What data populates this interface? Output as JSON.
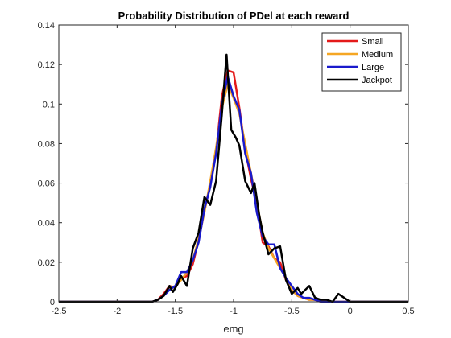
{
  "chart_data": {
    "type": "line",
    "title": "Probability Distribution of PDel at each reward",
    "xlabel": "emg",
    "ylabel": "",
    "xlim": [
      -2.5,
      0.5
    ],
    "ylim": [
      0,
      0.14
    ],
    "xticks": [
      -2.5,
      -2,
      -1.5,
      -1,
      -0.5,
      0,
      0.5
    ],
    "xtick_labels": [
      "-2.5",
      "-2",
      "-1.5",
      "-1",
      "-0.5",
      "0",
      "0.5"
    ],
    "yticks": [
      0,
      0.02,
      0.04,
      0.06,
      0.08,
      0.1,
      0.12,
      0.14
    ],
    "ytick_labels": [
      "0",
      "0.02",
      "0.04",
      "0.06",
      "0.08",
      "0.1",
      "0.12",
      "0.14"
    ],
    "grid": false,
    "legend_position": "top-right",
    "series": [
      {
        "name": "Small",
        "color": "#e41a1a",
        "x": [
          -2.5,
          -1.8,
          -1.7,
          -1.65,
          -1.6,
          -1.55,
          -1.5,
          -1.45,
          -1.4,
          -1.35,
          -1.3,
          -1.25,
          -1.2,
          -1.15,
          -1.1,
          -1.05,
          -1.0,
          -0.95,
          -0.9,
          -0.85,
          -0.8,
          -0.75,
          -0.7,
          -0.65,
          -0.6,
          -0.55,
          -0.5,
          -0.45,
          -0.4,
          -0.35,
          -0.3,
          -0.25,
          -0.2,
          -0.1,
          0.5
        ],
        "y": [
          0,
          0,
          0,
          0.001,
          0.004,
          0.008,
          0.007,
          0.012,
          0.013,
          0.019,
          0.031,
          0.046,
          0.059,
          0.076,
          0.104,
          0.117,
          0.116,
          0.098,
          0.077,
          0.062,
          0.05,
          0.03,
          0.028,
          0.022,
          0.02,
          0.011,
          0.006,
          0.003,
          0.002,
          0.001,
          0.001,
          0,
          0,
          0,
          0
        ]
      },
      {
        "name": "Medium",
        "color": "#f5a623",
        "x": [
          -2.5,
          -1.8,
          -1.7,
          -1.65,
          -1.6,
          -1.55,
          -1.5,
          -1.45,
          -1.4,
          -1.35,
          -1.3,
          -1.25,
          -1.2,
          -1.15,
          -1.1,
          -1.05,
          -1.0,
          -0.95,
          -0.9,
          -0.85,
          -0.8,
          -0.75,
          -0.7,
          -0.65,
          -0.6,
          -0.55,
          -0.5,
          -0.45,
          -0.4,
          -0.35,
          -0.3,
          -0.25,
          -0.2,
          -0.1,
          0.5
        ],
        "y": [
          0,
          0,
          0,
          0.001,
          0.003,
          0.007,
          0.008,
          0.011,
          0.015,
          0.021,
          0.032,
          0.045,
          0.061,
          0.078,
          0.098,
          0.11,
          0.103,
          0.095,
          0.08,
          0.065,
          0.05,
          0.035,
          0.027,
          0.022,
          0.017,
          0.012,
          0.006,
          0.003,
          0.002,
          0.001,
          0.001,
          0,
          0,
          0,
          0
        ]
      },
      {
        "name": "Large",
        "color": "#1a1acc",
        "x": [
          -2.5,
          -1.8,
          -1.7,
          -1.65,
          -1.6,
          -1.55,
          -1.5,
          -1.45,
          -1.4,
          -1.35,
          -1.3,
          -1.25,
          -1.2,
          -1.15,
          -1.1,
          -1.05,
          -1.0,
          -0.95,
          -0.9,
          -0.85,
          -0.8,
          -0.75,
          -0.7,
          -0.65,
          -0.6,
          -0.55,
          -0.5,
          -0.45,
          -0.4,
          -0.35,
          -0.3,
          -0.25,
          -0.2,
          -0.1,
          0.5
        ],
        "y": [
          0,
          0,
          0,
          0.001,
          0.003,
          0.006,
          0.008,
          0.015,
          0.015,
          0.021,
          0.03,
          0.047,
          0.058,
          0.075,
          0.1,
          0.114,
          0.104,
          0.097,
          0.075,
          0.065,
          0.045,
          0.033,
          0.029,
          0.029,
          0.017,
          0.012,
          0.008,
          0.004,
          0.002,
          0.002,
          0.001,
          0,
          0,
          0,
          0
        ]
      },
      {
        "name": "Jackpot",
        "color": "#000000",
        "x": [
          -2.5,
          -1.75,
          -1.7,
          -1.65,
          -1.6,
          -1.55,
          -1.52,
          -1.48,
          -1.45,
          -1.4,
          -1.35,
          -1.3,
          -1.25,
          -1.2,
          -1.15,
          -1.1,
          -1.06,
          -1.02,
          -0.98,
          -0.95,
          -0.9,
          -0.85,
          -0.82,
          -0.78,
          -0.75,
          -0.7,
          -0.65,
          -0.6,
          -0.55,
          -0.5,
          -0.45,
          -0.42,
          -0.35,
          -0.3,
          -0.25,
          -0.2,
          -0.15,
          -0.1,
          -0.05,
          0,
          0.5
        ],
        "y": [
          0,
          0,
          0,
          0.001,
          0.003,
          0.008,
          0.005,
          0.009,
          0.013,
          0.008,
          0.027,
          0.035,
          0.053,
          0.049,
          0.061,
          0.095,
          0.125,
          0.087,
          0.083,
          0.079,
          0.061,
          0.055,
          0.06,
          0.044,
          0.035,
          0.024,
          0.027,
          0.028,
          0.011,
          0.004,
          0.007,
          0.004,
          0.008,
          0.002,
          0.001,
          0.001,
          0,
          0.004,
          0.002,
          0,
          0
        ]
      }
    ]
  }
}
